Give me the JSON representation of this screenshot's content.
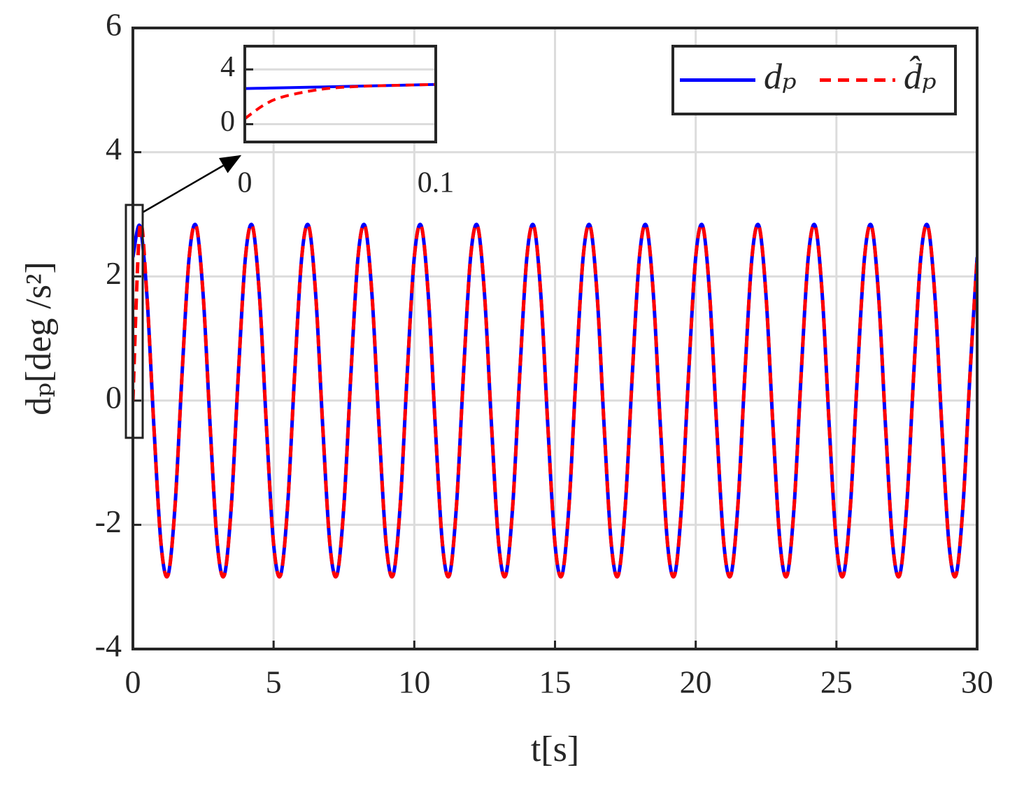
{
  "chart_data": [
    {
      "type": "line",
      "x_label": "t[s]",
      "y_label": "dₚ[deg /s²]",
      "xlim": [
        0,
        30
      ],
      "ylim": [
        -4,
        6
      ],
      "xticks": [
        0,
        5,
        10,
        15,
        20,
        25,
        30
      ],
      "yticks": [
        -4,
        -2,
        0,
        2,
        4,
        6
      ],
      "grid": true,
      "legend": "upper right",
      "x": [
        0,
        0.25,
        0.5,
        0.75,
        1,
        1.25,
        1.5,
        1.75,
        2,
        2.25,
        2.5,
        2.75,
        3,
        3.25,
        3.5,
        3.75,
        4,
        4.25,
        4.5,
        4.75,
        5,
        5.25,
        5.5,
        5.75,
        6,
        6.25,
        6.5,
        6.75,
        7,
        7.25,
        7.5,
        7.75,
        8,
        8.25,
        8.5,
        8.75,
        9,
        9.25,
        9.5,
        9.75,
        10,
        10.25,
        10.5,
        10.75,
        11,
        11.25,
        11.5,
        11.75,
        12,
        12.25,
        12.5,
        12.75,
        13,
        13.25,
        13.5,
        13.75,
        14,
        14.25,
        14.5,
        14.75,
        15,
        15.25,
        15.5,
        15.75,
        16,
        16.25,
        16.5,
        16.75,
        17,
        17.25,
        17.5,
        17.75,
        18,
        18.25,
        18.5,
        18.75,
        19,
        19.25,
        19.5,
        19.75,
        20,
        20.25,
        20.5,
        20.75,
        21,
        21.25,
        21.5,
        21.75,
        22,
        22.25,
        22.5,
        22.75,
        23,
        23.25,
        23.5,
        23.75,
        24,
        24.25,
        24.5,
        24.75,
        25,
        25.25,
        25.5,
        25.75,
        26,
        26.25,
        26.5,
        26.75,
        27,
        27.25,
        27.5,
        27.75,
        28,
        28.25,
        28.5,
        28.75,
        29,
        29.25,
        29.5,
        29.75,
        30
      ],
      "series": [
        {
          "name": "dₚ",
          "color": "#0000ff",
          "linestyle": "solid",
          "values": [
            2.31,
            2.81,
            1.68,
            -0.45,
            -2.31,
            -2.81,
            -1.68,
            0.45,
            2.31,
            2.81,
            1.68,
            -0.45,
            -2.31,
            -2.81,
            -1.68,
            0.45,
            2.31,
            2.81,
            1.68,
            -0.45,
            -2.31,
            -2.81,
            -1.68,
            0.45,
            2.31,
            2.81,
            1.68,
            -0.45,
            -2.31,
            -2.81,
            -1.68,
            0.45,
            2.31,
            2.81,
            1.68,
            -0.45,
            -2.31,
            -2.81,
            -1.68,
            0.45,
            2.31,
            2.81,
            1.68,
            -0.45,
            -2.31,
            -2.81,
            -1.68,
            0.45,
            2.31,
            2.81,
            1.68,
            -0.45,
            -2.31,
            -2.81,
            -1.68,
            0.45,
            2.31,
            2.81,
            1.68,
            -0.45,
            -2.31,
            -2.81,
            -1.68,
            0.45,
            2.31,
            2.81,
            1.68,
            -0.45,
            -2.31,
            -2.81,
            -1.68,
            0.45,
            2.31,
            2.81,
            1.68,
            -0.45,
            -2.31,
            -2.81,
            -1.68,
            0.45,
            2.31,
            2.81,
            1.68,
            -0.45,
            -2.31,
            -2.81,
            -1.68,
            0.45,
            2.31,
            2.81,
            1.68,
            -0.45,
            -2.31,
            -2.81,
            -1.68,
            0.45,
            2.31,
            2.81,
            1.68,
            -0.45,
            -2.31,
            -2.81,
            -1.68,
            0.45,
            2.31,
            2.81,
            1.68,
            -0.45,
            -2.31,
            -2.81,
            -1.68,
            0.45,
            2.31,
            2.81,
            1.68,
            -0.45,
            -2.31,
            -2.81,
            -1.68,
            0.45,
            2.31
          ]
        },
        {
          "name": "d̂ₚ",
          "color": "#ff0000",
          "linestyle": "dashed",
          "values": [
            0,
            2.81,
            1.68,
            -0.45,
            -2.31,
            -2.81,
            -1.68,
            0.45,
            2.31,
            2.81,
            1.68,
            -0.45,
            -2.31,
            -2.81,
            -1.68,
            0.45,
            2.31,
            2.81,
            1.68,
            -0.45,
            -2.31,
            -2.81,
            -1.68,
            0.45,
            2.31,
            2.81,
            1.68,
            -0.45,
            -2.31,
            -2.81,
            -1.68,
            0.45,
            2.31,
            2.81,
            1.68,
            -0.45,
            -2.31,
            -2.81,
            -1.68,
            0.45,
            2.31,
            2.81,
            1.68,
            -0.45,
            -2.31,
            -2.81,
            -1.68,
            0.45,
            2.31,
            2.81,
            1.68,
            -0.45,
            -2.31,
            -2.81,
            -1.68,
            0.45,
            2.31,
            2.81,
            1.68,
            -0.45,
            -2.31,
            -2.81,
            -1.68,
            0.45,
            2.31,
            2.81,
            1.68,
            -0.45,
            -2.31,
            -2.81,
            -1.68,
            0.45,
            2.31,
            2.81,
            1.68,
            -0.45,
            -2.31,
            -2.81,
            -1.68,
            0.45,
            2.31,
            2.81,
            1.68,
            -0.45,
            -2.31,
            -2.81,
            -1.68,
            0.45,
            2.31,
            2.81,
            1.68,
            -0.45,
            -2.31,
            -2.81,
            -1.68,
            0.45,
            2.31,
            2.81,
            1.68,
            -0.45,
            -2.31,
            -2.81,
            -1.68,
            0.45,
            2.31,
            2.81,
            1.68,
            -0.45,
            -2.31,
            -2.81,
            -1.68,
            0.45,
            2.31,
            2.81,
            1.68,
            -0.45,
            -2.31,
            -2.81,
            -1.68,
            0.45,
            2.31
          ]
        }
      ]
    },
    {
      "type": "line",
      "xlim": [
        0,
        0.1
      ],
      "ylim": [
        -1.3,
        5.7
      ],
      "xticks": [
        0,
        0.1
      ],
      "yticks": [
        0,
        4
      ],
      "grid": true,
      "x": [
        0,
        0.01,
        0.02,
        0.04,
        0.06,
        0.08,
        0.1
      ],
      "series": [
        {
          "color": "#0000ff",
          "linestyle": "solid",
          "values": [
            2.6,
            2.63,
            2.66,
            2.72,
            2.78,
            2.84,
            2.9
          ]
        },
        {
          "color": "#ff0000",
          "linestyle": "dashed",
          "values": [
            0.4,
            1.4,
            2.0,
            2.55,
            2.76,
            2.84,
            2.9
          ]
        }
      ]
    }
  ]
}
